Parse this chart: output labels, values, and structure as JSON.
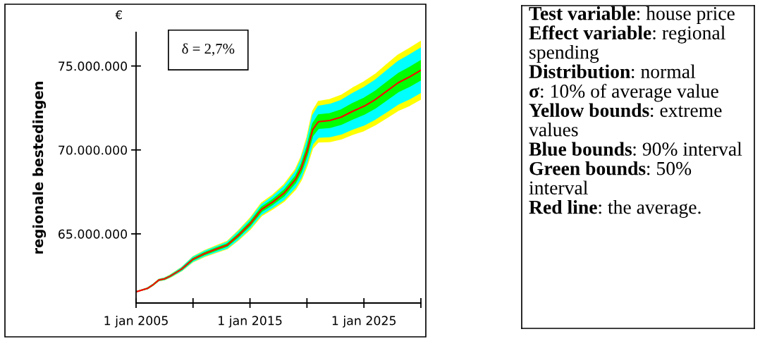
{
  "chart_data": [
    {
      "type": "line",
      "ylabel": "regionale bestedingen",
      "annotations": [
        "δ = 2,7%",
        "€"
      ],
      "x": [
        "2005-01",
        "2006-01",
        "2006-07",
        "2007-01",
        "2007-07",
        "2008-01",
        "2009-01",
        "2010-01",
        "2011-01",
        "2012-01",
        "2013-01",
        "2014-01",
        "2015-01",
        "2016-01",
        "2017-01",
        "2018-01",
        "2019-01",
        "2019-07",
        "2020-01",
        "2020-07",
        "2021-01",
        "2022-01",
        "2023-01",
        "2024-01",
        "2025-01",
        "2026-01",
        "2027-01",
        "2028-01",
        "2029-01",
        "2030-01"
      ],
      "xlim": [
        "2005-01-01",
        "2030-01-01"
      ],
      "xticks": [
        {
          "value": "2005-01-01",
          "label": "1 jan 2005"
        },
        {
          "value": "2010-01-01",
          "label": null
        },
        {
          "value": "2015-01-01",
          "label": "1 jan 2015"
        },
        {
          "value": "2020-01-01",
          "label": null
        },
        {
          "value": "2025-01-01",
          "label": "1 jan 2025"
        },
        {
          "value": "2030-01-01",
          "label": null
        }
      ],
      "ylim": [
        60880000,
        77000000
      ],
      "yticks": [
        {
          "value": 65000000,
          "label": "65.000.000"
        },
        {
          "value": 70000000,
          "label": "70.000.000"
        },
        {
          "value": 75000000,
          "label": "75.000.000"
        }
      ],
      "series": [
        {
          "type": "line",
          "color": "#ffff00",
          "values": [
            null,
            null,
            null,
            null,
            null,
            null,
            null,
            null,
            null,
            null,
            null,
            null,
            null,
            null,
            null,
            null,
            null,
            null,
            null,
            null,
            null,
            null,
            null,
            null,
            null,
            null,
            null,
            null,
            null,
            null
          ],
          "lower": [
            61550000,
            61730000,
            61940000,
            62210000,
            62270000,
            62410000,
            62800000,
            63340000,
            63640000,
            63880000,
            64110000,
            64640000,
            65260000,
            66070000,
            66480000,
            66940000,
            67650000,
            68200000,
            69050000,
            70100000,
            70480000,
            70500000,
            70650000,
            70920000,
            71150000,
            71500000,
            71920000,
            72350000,
            72650000,
            73030000
          ],
          "upper": [
            61550000,
            61770000,
            62000000,
            62290000,
            62370000,
            62550000,
            63000000,
            63640000,
            64000000,
            64280000,
            64550000,
            65200000,
            65920000,
            66830000,
            67320000,
            67940000,
            68850000,
            69600000,
            70750000,
            72300000,
            72880000,
            73000000,
            73250000,
            73680000,
            74050000,
            74500000,
            75080000,
            75650000,
            76050000,
            76470000
          ]
        },
        {
          "type": "line",
          "color": "#00ffff",
          "values": [
            null,
            null,
            null,
            null,
            null,
            null,
            null,
            null,
            null,
            null,
            null,
            null,
            null,
            null,
            null,
            null,
            null,
            null,
            null,
            null,
            null,
            null,
            null,
            null,
            null,
            null,
            null,
            null,
            null,
            null
          ],
          "lower": [
            61550000,
            61730000,
            61950000,
            62220000,
            62280000,
            62430000,
            62820000,
            63370000,
            63680000,
            63930000,
            64160000,
            64700000,
            65340000,
            66160000,
            66580000,
            67050000,
            67790000,
            68360000,
            69250000,
            70350000,
            70760000,
            70790000,
            70950000,
            71240000,
            71480000,
            71840000,
            72280000,
            72730000,
            73040000,
            73430000
          ],
          "upper": [
            61550000,
            61770000,
            61990000,
            62280000,
            62360000,
            62530000,
            62980000,
            63610000,
            63960000,
            64230000,
            64500000,
            65140000,
            65840000,
            66740000,
            67220000,
            67830000,
            68710000,
            69440000,
            70550000,
            72050000,
            72600000,
            72710000,
            72950000,
            73360000,
            73720000,
            74160000,
            74720000,
            75270000,
            75660000,
            76070000
          ]
        },
        {
          "type": "line",
          "color": "#00ff00",
          "values": [
            null,
            null,
            null,
            null,
            null,
            null,
            null,
            null,
            null,
            null,
            null,
            null,
            null,
            null,
            null,
            null,
            null,
            null,
            null,
            null,
            null,
            null,
            null,
            null,
            null,
            null,
            null,
            null,
            null,
            null
          ],
          "lower": [
            61550000,
            61740000,
            61960000,
            62240000,
            62300000,
            62460000,
            62870000,
            63440000,
            63760000,
            64010000,
            64260000,
            64830000,
            65480000,
            66320000,
            66760000,
            67270000,
            68050000,
            68670000,
            69620000,
            70840000,
            71280000,
            71340000,
            71520000,
            71840000,
            72120000,
            72500000,
            72980000,
            73460000,
            73790000,
            74180000
          ],
          "upper": [
            61550000,
            61760000,
            61980000,
            62260000,
            62340000,
            62500000,
            62930000,
            63540000,
            63880000,
            64150000,
            64400000,
            65010000,
            65700000,
            66580000,
            67040000,
            67610000,
            68450000,
            69130000,
            70180000,
            71560000,
            72080000,
            72160000,
            72380000,
            72760000,
            73080000,
            73500000,
            74020000,
            74540000,
            74910000,
            75320000
          ]
        },
        {
          "type": "line",
          "color": "#ff0000",
          "values": [
            61550000,
            61750000,
            61970000,
            62250000,
            62320000,
            62480000,
            62900000,
            63490000,
            63820000,
            64080000,
            64330000,
            64920000,
            65590000,
            66450000,
            66900000,
            67440000,
            68250000,
            68900000,
            69900000,
            71200000,
            71680000,
            71750000,
            71950000,
            72300000,
            72600000,
            73000000,
            73500000,
            74000000,
            74350000,
            74750000
          ]
        }
      ]
    },
    {
      "type": "other",
      "annotations": [
        "Test variable: house price",
        "Effect variable: regional spending",
        "Distribution: normal",
        "σ: 10% of average value",
        "Yellow bounds: extreme values",
        "Blue bounds: 90% interval",
        "Green bounds: 50% interval",
        "Red line: the average."
      ]
    }
  ]
}
